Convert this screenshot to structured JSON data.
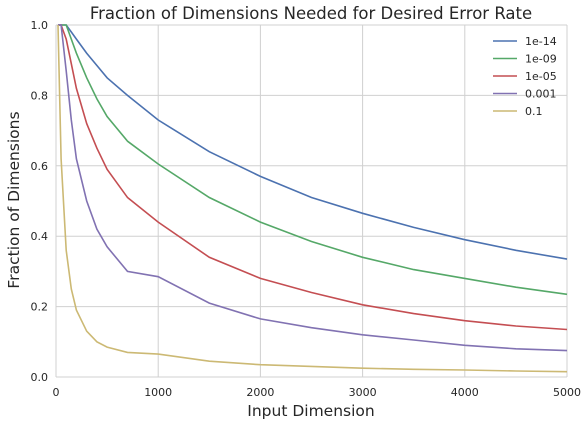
{
  "chart_data": {
    "type": "line",
    "title": "Fraction of Dimensions Needed for Desired Error Rate",
    "xlabel": "Input Dimension",
    "ylabel": "Fraction of Dimensions",
    "xlim": [
      0,
      5000
    ],
    "ylim": [
      0.0,
      1.0
    ],
    "xticks": [
      0,
      1000,
      2000,
      3000,
      4000,
      5000
    ],
    "yticks": [
      0.0,
      0.2,
      0.4,
      0.6,
      0.8,
      1.0
    ],
    "xtick_labels": [
      "0",
      "1000",
      "2000",
      "3000",
      "4000",
      "5000"
    ],
    "ytick_labels": [
      "0.0",
      "0.2",
      "0.4",
      "0.6",
      "0.8",
      "1.0"
    ],
    "grid": true,
    "legend_position": "top-right",
    "x": [
      20,
      50,
      100,
      150,
      200,
      300,
      400,
      500,
      700,
      1000,
      1500,
      2000,
      2500,
      3000,
      3500,
      4000,
      4500,
      5000
    ],
    "series": [
      {
        "name": "1e-14",
        "color": "#4c72b0",
        "values": [
          1.0,
          1.0,
          1.0,
          0.98,
          0.96,
          0.92,
          0.885,
          0.85,
          0.8,
          0.73,
          0.64,
          0.57,
          0.51,
          0.465,
          0.425,
          0.39,
          0.36,
          0.335
        ]
      },
      {
        "name": "1e-09",
        "color": "#55a868",
        "values": [
          1.0,
          1.0,
          1.0,
          0.96,
          0.92,
          0.85,
          0.79,
          0.74,
          0.67,
          0.605,
          0.51,
          0.44,
          0.385,
          0.34,
          0.305,
          0.28,
          0.255,
          0.235
        ]
      },
      {
        "name": "1e-05",
        "color": "#c44e52",
        "values": [
          1.0,
          1.0,
          0.96,
          0.89,
          0.82,
          0.72,
          0.65,
          0.59,
          0.51,
          0.44,
          0.34,
          0.28,
          0.24,
          0.205,
          0.18,
          0.16,
          0.145,
          0.135
        ]
      },
      {
        "name": "0.001",
        "color": "#8172b2",
        "values": [
          1.0,
          1.0,
          0.87,
          0.73,
          0.62,
          0.5,
          0.42,
          0.37,
          0.3,
          0.285,
          0.21,
          0.165,
          0.14,
          0.12,
          0.105,
          0.09,
          0.08,
          0.075
        ]
      },
      {
        "name": "0.1",
        "color": "#ccb974",
        "values": [
          1.0,
          0.62,
          0.36,
          0.25,
          0.19,
          0.13,
          0.1,
          0.085,
          0.07,
          0.065,
          0.045,
          0.035,
          0.03,
          0.025,
          0.022,
          0.02,
          0.017,
          0.015
        ]
      }
    ]
  }
}
